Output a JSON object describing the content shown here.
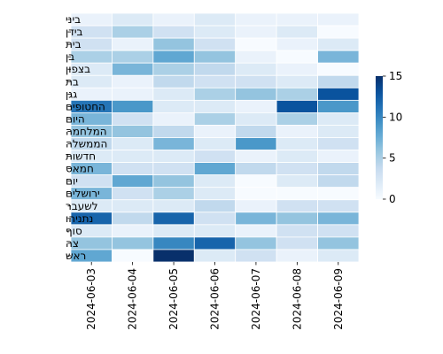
{
  "chart_data": {
    "type": "heatmap",
    "title": "",
    "xlabel": "",
    "ylabel": "",
    "x": [
      "2024-06-03",
      "2024-06-04",
      "2024-06-05",
      "2024-06-06",
      "2024-06-07",
      "2024-06-08",
      "2024-06-09"
    ],
    "y": [
      "ביני",
      "בידן",
      "בית",
      "בן",
      "בצפון",
      "בת",
      "גגן",
      "החטופים",
      "היום",
      "המלחמה",
      "הממשלה",
      "חדשות",
      "חמאס",
      "יום",
      "ירושלים",
      "לשעבר",
      "נתניהו",
      "סוף",
      "צה",
      "ראש"
    ],
    "values": [
      [
        1,
        2,
        1,
        2,
        1,
        1,
        1
      ],
      [
        3,
        5,
        3,
        2,
        1,
        2,
        0
      ],
      [
        3,
        1,
        6,
        3,
        0,
        1,
        2
      ],
      [
        5,
        5,
        8,
        6,
        1,
        0,
        7
      ],
      [
        2,
        7,
        5,
        4,
        2,
        1,
        0
      ],
      [
        2,
        1,
        4,
        3,
        3,
        2,
        4
      ],
      [
        1,
        1,
        2,
        5,
        6,
        5,
        13
      ],
      [
        11,
        9,
        2,
        2,
        1,
        13,
        9
      ],
      [
        7,
        3,
        1,
        5,
        2,
        5,
        2
      ],
      [
        6,
        6,
        4,
        1,
        4,
        1,
        2
      ],
      [
        4,
        2,
        7,
        2,
        9,
        2,
        3
      ],
      [
        2,
        2,
        2,
        3,
        1,
        2,
        1
      ],
      [
        7,
        3,
        3,
        8,
        4,
        3,
        4
      ],
      [
        3,
        8,
        6,
        2,
        0,
        2,
        4
      ],
      [
        7,
        3,
        5,
        2,
        0,
        0,
        0
      ],
      [
        2,
        2,
        2,
        4,
        1,
        3,
        3
      ],
      [
        12,
        4,
        12,
        3,
        7,
        6,
        7
      ],
      [
        2,
        1,
        2,
        2,
        1,
        3,
        3
      ],
      [
        6,
        6,
        10,
        12,
        6,
        3,
        6
      ],
      [
        8,
        0,
        15,
        2,
        3,
        1,
        2
      ]
    ],
    "colorbar": {
      "min": 0,
      "max": 15,
      "ticks": [
        0,
        5,
        10,
        15
      ]
    },
    "colormap": "Blues",
    "grid": true
  }
}
